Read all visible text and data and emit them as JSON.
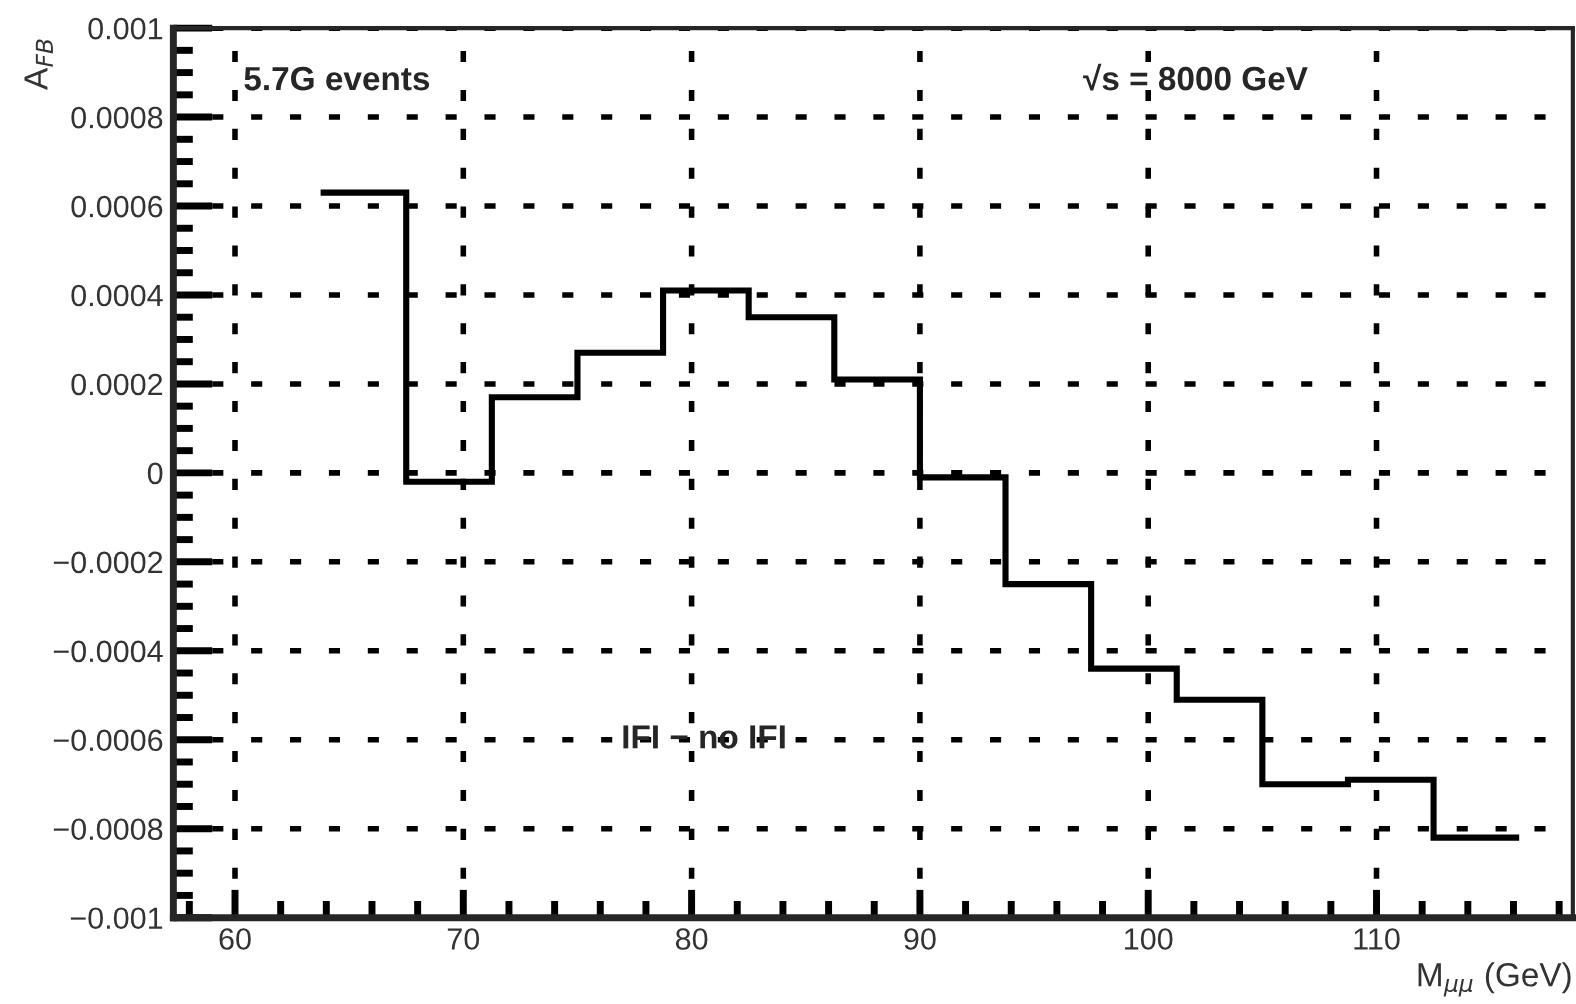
{
  "chart_data": {
    "type": "histogram",
    "bins": [
      63.75,
      67.5,
      71.25,
      75,
      78.75,
      82.5,
      86.25,
      90,
      93.75,
      97.5,
      101.25,
      105,
      108.75,
      112.5,
      116.25
    ],
    "values": [
      0.00063,
      -2e-05,
      0.00017,
      0.00027,
      0.00041,
      0.00035,
      0.00021,
      -1e-05,
      -0.00025,
      -0.00044,
      -0.00051,
      -0.0007,
      -0.00069,
      -0.00082
    ],
    "color": "#000000",
    "xlabel": "M$_{μμ}$ (GeV)",
    "ylabel": "A$_{FB}$",
    "annotations": [
      "5.7G events",
      "√s = 8000 GeV",
      "IFI − no IFI"
    ],
    "xlim": [
      57.3,
      118.6
    ],
    "xticks": [
      60,
      70,
      80,
      90,
      100,
      110
    ],
    "ylim": [
      -0.001,
      0.001
    ],
    "yticks": [
      {
        "value": -0.001,
        "label": "−0.001"
      },
      {
        "value": -0.0008,
        "label": "−0.0008"
      },
      {
        "value": -0.0006,
        "label": "−0.0006"
      },
      {
        "value": -0.0004,
        "label": "−0.0004"
      },
      {
        "value": -0.0002,
        "label": "−0.0002"
      },
      0,
      0.0002,
      0.0004,
      0.0006,
      0.0008,
      0.001
    ],
    "grid": true,
    "line_style": "solid"
  }
}
